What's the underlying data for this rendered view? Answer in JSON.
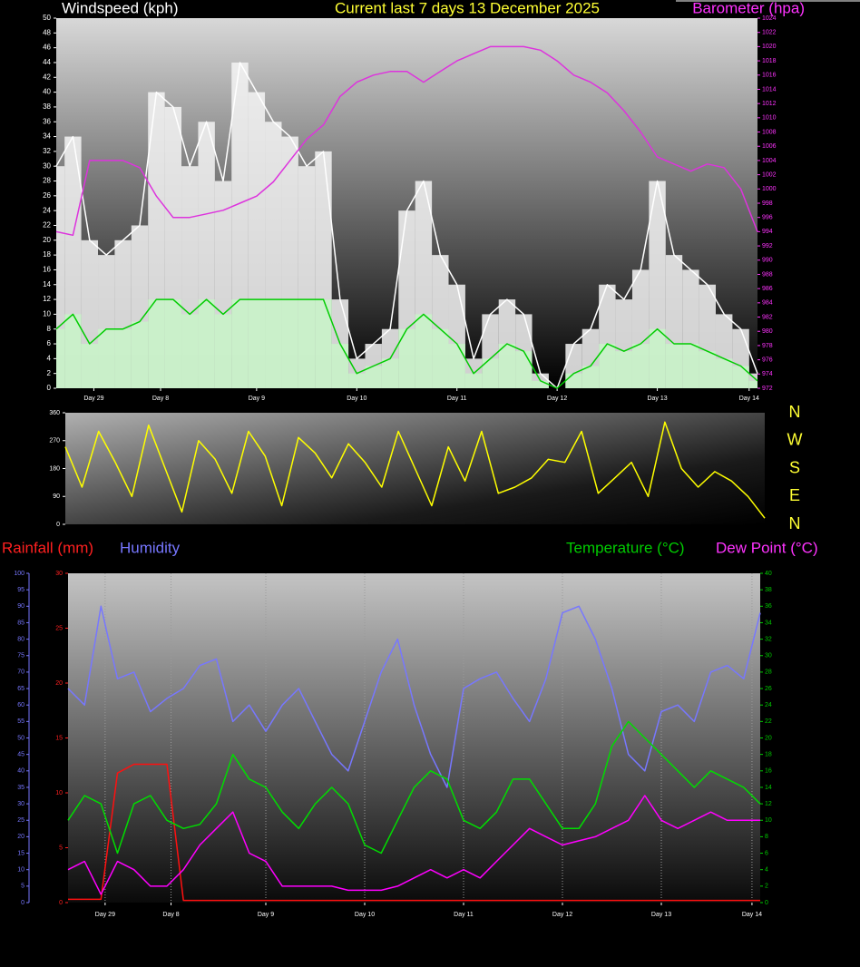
{
  "chart_data": [
    {
      "type": "line",
      "title": "Current last 7 days 13 December 2025",
      "y_label": "Windspeed (kph)",
      "y2_label": "Barometer (hpa)",
      "x": [
        0,
        4,
        8,
        12,
        16,
        20,
        24,
        28,
        32,
        36,
        40,
        44,
        48,
        52,
        56,
        60,
        64,
        68,
        72,
        76,
        80,
        84,
        88,
        92,
        96,
        100,
        104,
        108,
        112,
        116,
        120,
        124,
        128,
        132,
        136,
        140,
        144,
        148,
        152,
        156,
        160,
        164,
        168
      ],
      "xlim": [
        0,
        168
      ],
      "xticks": [
        {
          "value": 9,
          "label": "Day 29"
        },
        {
          "value": 25,
          "label": "Day 8"
        },
        {
          "value": 48,
          "label": "Day 9"
        },
        {
          "value": 72,
          "label": "Day 10"
        },
        {
          "value": 96,
          "label": "Day 11"
        },
        {
          "value": 120,
          "label": "Day 12"
        },
        {
          "value": 144,
          "label": "Day 13"
        },
        {
          "value": 166,
          "label": "Day 14"
        }
      ],
      "ylim": [
        0,
        50
      ],
      "yticks": [
        0,
        2,
        4,
        6,
        8,
        10,
        12,
        14,
        16,
        18,
        20,
        22,
        24,
        26,
        28,
        30,
        32,
        34,
        36,
        38,
        40,
        42,
        44,
        46,
        48,
        50
      ],
      "y2lim": [
        972,
        1024
      ],
      "y2ticks": [
        972,
        974,
        976,
        978,
        980,
        982,
        984,
        986,
        988,
        990,
        992,
        994,
        996,
        998,
        1000,
        1002,
        1004,
        1006,
        1008,
        1010,
        1012,
        1014,
        1016,
        1018,
        1020,
        1022,
        1024
      ],
      "ytick_color": "#ffffff",
      "y2tick_color": "#ff33ff",
      "grid": false,
      "series": [
        {
          "color": "#ffffff",
          "bar_color": "#f4f4f4",
          "bars": true,
          "values": [
            30,
            34,
            20,
            18,
            20,
            22,
            40,
            38,
            30,
            36,
            28,
            44,
            40,
            36,
            34,
            30,
            32,
            12,
            4,
            6,
            8,
            24,
            28,
            18,
            14,
            4,
            10,
            12,
            10,
            2,
            0,
            6,
            8,
            14,
            12,
            16,
            28,
            18,
            16,
            14,
            10,
            8,
            2
          ]
        },
        {
          "color": "#00cc00",
          "bar_color": "#c8f5c8",
          "bars": true,
          "values": [
            8,
            10,
            6,
            8,
            8,
            9,
            12,
            12,
            10,
            12,
            10,
            12,
            12,
            12,
            12,
            12,
            12,
            6,
            2,
            3,
            4,
            8,
            10,
            8,
            6,
            2,
            4,
            6,
            5,
            1,
            0,
            2,
            3,
            6,
            5,
            6,
            8,
            6,
            6,
            5,
            4,
            3,
            1
          ]
        },
        {
          "color": "#dd33dd",
          "axis": "y2",
          "bars": false,
          "values": [
            994,
            993.5,
            1004,
            1004,
            1004,
            1003,
            999,
            996,
            996,
            996.5,
            997,
            998,
            999,
            1001,
            1004,
            1007,
            1009,
            1013,
            1015,
            1016,
            1016.5,
            1016.5,
            1015,
            1016.5,
            1018,
            1019,
            1020,
            1020,
            1020,
            1019.5,
            1018,
            1016,
            1015,
            1013.5,
            1011,
            1008,
            1004.5,
            1003.5,
            1002.5,
            1003.5,
            1003,
            1000,
            994
          ]
        }
      ]
    },
    {
      "type": "line",
      "x": [
        0,
        4,
        8,
        12,
        16,
        20,
        24,
        28,
        32,
        36,
        40,
        44,
        48,
        52,
        56,
        60,
        64,
        68,
        72,
        76,
        80,
        84,
        88,
        92,
        96,
        100,
        104,
        108,
        112,
        116,
        120,
        124,
        128,
        132,
        136,
        140,
        144,
        148,
        152,
        156,
        160,
        164,
        168
      ],
      "xlim": [
        0,
        168
      ],
      "ylim": [
        0,
        360
      ],
      "yticks": [
        0,
        90,
        180,
        270,
        360
      ],
      "ytick_color": "#ffffff",
      "side_labels": [
        "N",
        "W",
        "S",
        "E",
        "N"
      ],
      "grid": false,
      "series": [
        {
          "color": "#ffff00",
          "bars": false,
          "values": [
            250,
            120,
            300,
            200,
            90,
            320,
            180,
            40,
            270,
            210,
            100,
            300,
            220,
            60,
            280,
            230,
            150,
            260,
            200,
            120,
            300,
            180,
            60,
            250,
            140,
            300,
            100,
            120,
            150,
            210,
            200,
            300,
            100,
            150,
            200,
            90,
            330,
            180,
            120,
            170,
            140,
            90,
            20
          ]
        }
      ]
    },
    {
      "type": "line",
      "x": [
        0,
        4,
        8,
        12,
        16,
        20,
        24,
        28,
        32,
        36,
        40,
        44,
        48,
        52,
        56,
        60,
        64,
        68,
        72,
        76,
        80,
        84,
        88,
        92,
        96,
        100,
        104,
        108,
        112,
        116,
        120,
        124,
        128,
        132,
        136,
        140,
        144,
        148,
        152,
        156,
        160,
        164,
        168
      ],
      "xlim": [
        0,
        168
      ],
      "xticks": [
        {
          "value": 9,
          "label": "Day 29"
        },
        {
          "value": 25,
          "label": "Day 8"
        },
        {
          "value": 48,
          "label": "Day 9"
        },
        {
          "value": 72,
          "label": "Day 10"
        },
        {
          "value": 96,
          "label": "Day 11"
        },
        {
          "value": 120,
          "label": "Day 12"
        },
        {
          "value": 144,
          "label": "Day 13"
        },
        {
          "value": 166,
          "label": "Day 14"
        }
      ],
      "ylim": [
        0,
        30
      ],
      "yticks": [
        0,
        5,
        10,
        15,
        20,
        25,
        30
      ],
      "y3lim": [
        0,
        100
      ],
      "y3ticks": [
        0,
        5,
        10,
        15,
        20,
        25,
        30,
        35,
        40,
        45,
        50,
        55,
        60,
        65,
        70,
        75,
        80,
        85,
        90,
        95,
        100
      ],
      "y2lim": [
        0,
        40
      ],
      "y2ticks": [
        0,
        2,
        4,
        6,
        8,
        10,
        12,
        14,
        16,
        18,
        20,
        22,
        24,
        26,
        28,
        30,
        32,
        34,
        36,
        38,
        40
      ],
      "ytick_color": "#ff2020",
      "y3tick_color": "#7777ff",
      "y2tick_color": "#00cc00",
      "grid": true,
      "series": [
        {
          "name": "Rainfall (mm)",
          "color": "#ff1010",
          "bars": false,
          "values": [
            0.3,
            0.3,
            0.3,
            11.8,
            12.6,
            12.6,
            12.6,
            0.2,
            0.2,
            0.2,
            0.2,
            0.2,
            0.2,
            0.2,
            0.2,
            0.2,
            0.2,
            0.2,
            0.2,
            0.2,
            0.2,
            0.2,
            0.2,
            0.2,
            0.2,
            0.2,
            0.2,
            0.2,
            0.2,
            0.2,
            0.2,
            0.2,
            0.2,
            0.2,
            0.2,
            0.2,
            0.2,
            0.2,
            0.2,
            0.2,
            0.2,
            0.2,
            0.2
          ]
        },
        {
          "name": "Humidity",
          "color": "#7777ff",
          "axis": "y3",
          "bars": false,
          "values": [
            65,
            60,
            90,
            68,
            70,
            58,
            62,
            65,
            72,
            74,
            55,
            60,
            52,
            60,
            65,
            55,
            45,
            40,
            55,
            70,
            80,
            60,
            45,
            35,
            65,
            68,
            70,
            62,
            55,
            68,
            88,
            90,
            80,
            65,
            45,
            40,
            58,
            60,
            55,
            70,
            72,
            68,
            88
          ]
        },
        {
          "name": "Temperature (°C)",
          "color": "#00dd00",
          "axis": "y2",
          "bars": false,
          "values": [
            10,
            13,
            12,
            6,
            12,
            13,
            10,
            9,
            9.5,
            12,
            18,
            15,
            14,
            11,
            9,
            12,
            14,
            12,
            7,
            6,
            10,
            14,
            16,
            15,
            10,
            9,
            11,
            15,
            15,
            12,
            9,
            9,
            12,
            19,
            22,
            20,
            18,
            16,
            14,
            16,
            15,
            14,
            12
          ]
        },
        {
          "name": "Dew Point (°C)",
          "color": "#ff00ff",
          "axis": "y2",
          "bars": false,
          "values": [
            4,
            5,
            1,
            5,
            4,
            2,
            2,
            4,
            7,
            9,
            11,
            6,
            5,
            2,
            2,
            2,
            2,
            1.5,
            1.5,
            1.5,
            2,
            3,
            4,
            3,
            4,
            3,
            5,
            7,
            9,
            8,
            7,
            7.5,
            8,
            9,
            10,
            13,
            10,
            9,
            10,
            11,
            10,
            10,
            10
          ]
        }
      ]
    }
  ]
}
